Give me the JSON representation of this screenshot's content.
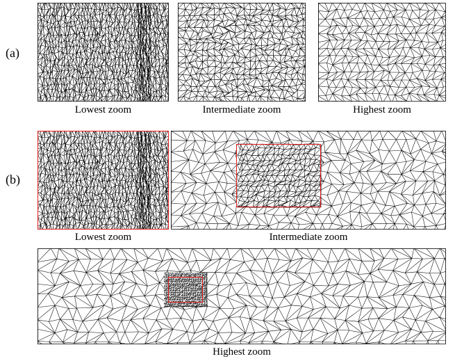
{
  "row_labels": {
    "a": "(a)",
    "b": "(b)"
  },
  "row_a": {
    "captions": [
      "Lowest zoom",
      "Intermediate zoom",
      "Highest zoom"
    ]
  },
  "row_b": {
    "captions": [
      "Lowest zoom",
      "Intermediate zoom",
      "Highest zoom"
    ]
  },
  "colors": {
    "highlight": "#e41b1b",
    "mesh": "#000000",
    "background": "#ffffff"
  }
}
